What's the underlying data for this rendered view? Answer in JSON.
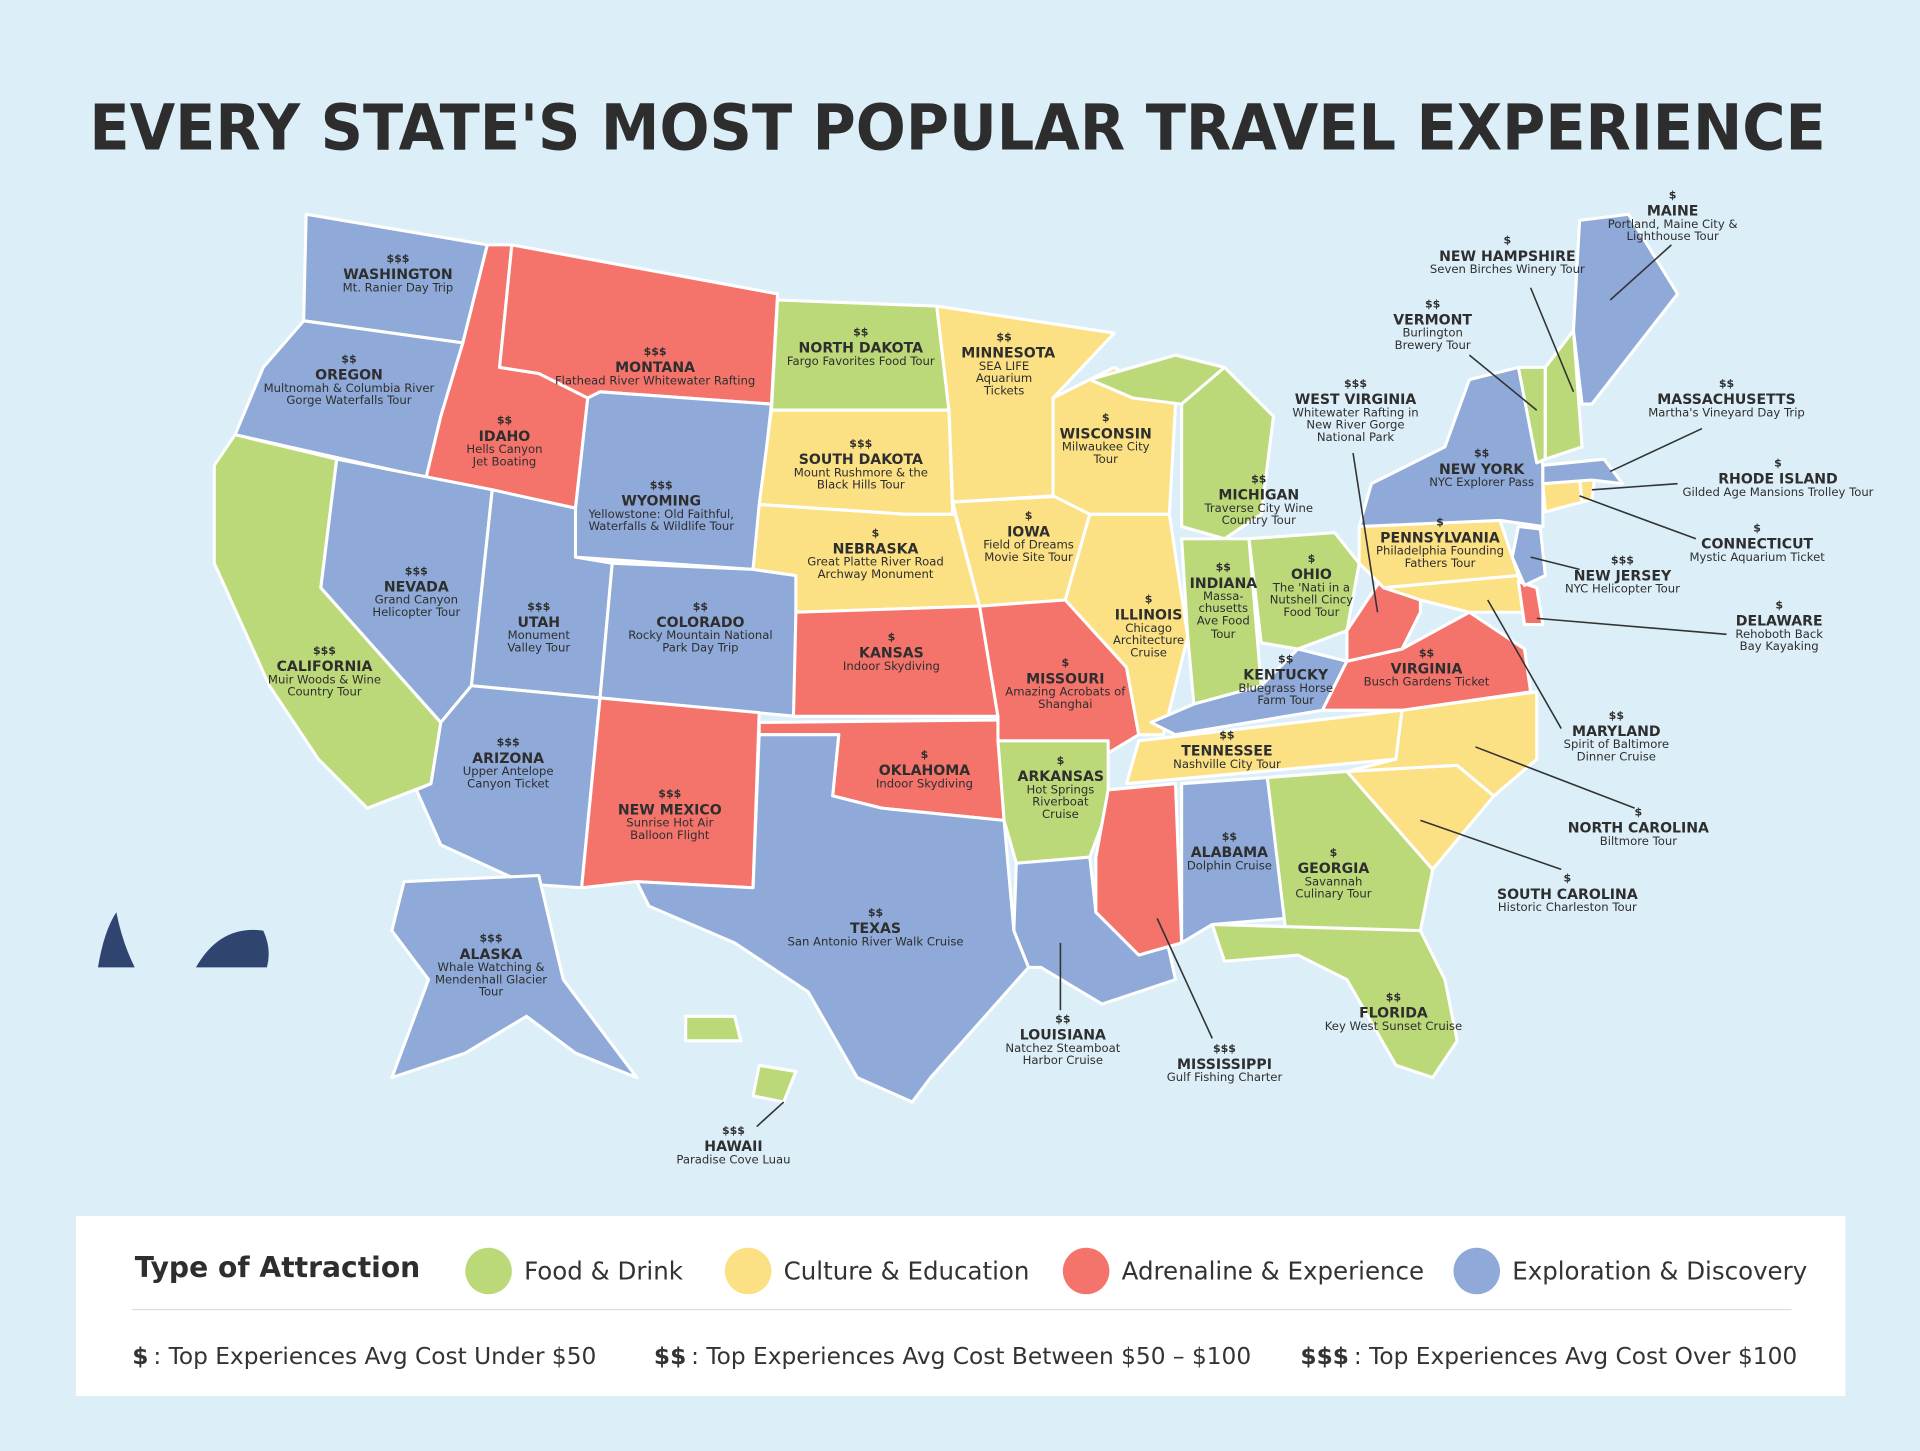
{
  "title": "EVERY STATE'S MOST POPULAR TRAVEL EXPERIENCE",
  "states": [
    {
      "name": "WASHINGTON",
      "cost": "$$$",
      "tour": "Mt. Ranier Day Trip",
      "color": "#8faad8"
    },
    {
      "name": "OREGON",
      "cost": "$$",
      "tour": "Multnomah & Columbia River Gorge Waterfalls Tour",
      "color": "#8faad8"
    },
    {
      "name": "CALIFORNIA",
      "cost": "$$$",
      "tour": "Muir Woods & Wine Country Tour",
      "color": "#bcd97a"
    },
    {
      "name": "IDAHO",
      "cost": "$$",
      "tour": "Hells Canyon Jet Boating",
      "color": "#f4746c"
    },
    {
      "name": "NEVADA",
      "cost": "$$$",
      "tour": "Grand Canyon Helicopter Tour",
      "color": "#8faad8"
    },
    {
      "name": "UTAH",
      "cost": "$$$",
      "tour": "Monument Valley Tour",
      "color": "#8faad8"
    },
    {
      "name": "ARIZONA",
      "cost": "$$$",
      "tour": "Upper Antelope Canyon Ticket",
      "color": "#8faad8"
    },
    {
      "name": "MONTANA",
      "cost": "$$$",
      "tour": "Flathead River Whitewater Rafting",
      "color": "#f4746c"
    },
    {
      "name": "WYOMING",
      "cost": "$$$",
      "tour": "Yellowstone: Old Faithful, Waterfalls & Wildlife Tour",
      "color": "#8faad8"
    },
    {
      "name": "COLORADO",
      "cost": "$$",
      "tour": "Rocky Mountain National Park Day Trip",
      "color": "#8faad8"
    },
    {
      "name": "NEW MEXICO",
      "cost": "$$$",
      "tour": "Sunrise Hot Air Balloon Flight",
      "color": "#f4746c"
    },
    {
      "name": "NORTH DAKOTA",
      "cost": "$$",
      "tour": "Fargo Favorites Food Tour",
      "color": "#bcd97a"
    },
    {
      "name": "SOUTH DAKOTA",
      "cost": "$$$",
      "tour": "Mount Rushmore & the Black Hills Tour",
      "color": "#fbe084"
    },
    {
      "name": "NEBRASKA",
      "cost": "$",
      "tour": "Great Platte River Road Archway Monument",
      "color": "#fbe084"
    },
    {
      "name": "KANSAS",
      "cost": "$",
      "tour": "Indoor Skydiving",
      "color": "#f4746c"
    },
    {
      "name": "OKLAHOMA",
      "cost": "$",
      "tour": "Indoor Skydiving",
      "color": "#f4746c"
    },
    {
      "name": "TEXAS",
      "cost": "$$",
      "tour": "San Antonio River Walk Cruise",
      "color": "#8faad8"
    },
    {
      "name": "MINNESOTA",
      "cost": "$$",
      "tour": "SEA LIFE Aquarium Tickets",
      "color": "#fbe084"
    },
    {
      "name": "IOWA",
      "cost": "$",
      "tour": "Field of Dreams Movie Site Tour",
      "color": "#fbe084"
    },
    {
      "name": "MISSOURI",
      "cost": "$",
      "tour": "Amazing Acrobats of Shanghai",
      "color": "#f4746c"
    },
    {
      "name": "ARKANSAS",
      "cost": "$",
      "tour": "Hot Springs Riverboat Cruise",
      "color": "#bcd97a"
    },
    {
      "name": "LOUISIANA",
      "cost": "$$",
      "tour": "Natchez Steamboat Harbor Cruise",
      "color": "#8faad8"
    },
    {
      "name": "WISCONSIN",
      "cost": "$",
      "tour": "Milwaukee City Tour",
      "color": "#fbe084"
    },
    {
      "name": "ILLINOIS",
      "cost": "$",
      "tour": "Chicago Architecture Cruise",
      "color": "#fbe084"
    },
    {
      "name": "MISSISSIPPI",
      "cost": "$$$",
      "tour": "Gulf Fishing Charter",
      "color": "#f4746c"
    },
    {
      "name": "MICHIGAN",
      "cost": "$$",
      "tour": "Traverse City Wine Country Tour",
      "color": "#bcd97a"
    },
    {
      "name": "INDIANA",
      "cost": "$$",
      "tour": "Massa-chusetts Ave Food Tour",
      "color": "#bcd97a"
    },
    {
      "name": "OHIO",
      "cost": "$",
      "tour": "The 'Nati in a Nutshell Cincy Food Tour",
      "color": "#bcd97a"
    },
    {
      "name": "KENTUCKY",
      "cost": "$$",
      "tour": "Bluegrass Horse Farm Tour",
      "color": "#8faad8"
    },
    {
      "name": "TENNESSEE",
      "cost": "$$",
      "tour": "Nashville City Tour",
      "color": "#fbe084"
    },
    {
      "name": "ALABAMA",
      "cost": "$$",
      "tour": "Dolphin Cruise",
      "color": "#8faad8"
    },
    {
      "name": "GEORGIA",
      "cost": "$",
      "tour": "Savannah Culinary Tour",
      "color": "#bcd97a"
    },
    {
      "name": "FLORIDA",
      "cost": "$$",
      "tour": "Key West Sunset Cruise",
      "color": "#bcd97a"
    },
    {
      "name": "SOUTH CAROLINA",
      "cost": "$",
      "tour": "Historic Charleston Tour",
      "color": "#fbe084"
    },
    {
      "name": "NORTH CAROLINA",
      "cost": "$",
      "tour": "Biltmore Tour",
      "color": "#fbe084"
    },
    {
      "name": "VIRGINIA",
      "cost": "$$",
      "tour": "Busch Gardens Ticket",
      "color": "#f4746c"
    },
    {
      "name": "WEST VIRGINIA",
      "cost": "$$$",
      "tour": "Whitewater Rafting in New River Gorge National Park",
      "color": "#f4746c"
    },
    {
      "name": "PENNSYLVANIA",
      "cost": "$",
      "tour": "Philadelphia Founding Fathers Tour",
      "color": "#fbe084"
    },
    {
      "name": "NEW YORK",
      "cost": "$$",
      "tour": "NYC Explorer Pass",
      "color": "#8faad8"
    },
    {
      "name": "MARYLAND",
      "cost": "$$",
      "tour": "Spirit of Baltimore Dinner Cruise",
      "color": "#fbe084"
    },
    {
      "name": "DELAWARE",
      "cost": "$",
      "tour": "Rehoboth Back Bay Kayaking",
      "color": "#f4746c"
    },
    {
      "name": "NEW JERSEY",
      "cost": "$$$",
      "tour": "NYC Helicopter Tour",
      "color": "#8faad8"
    },
    {
      "name": "CONNECTICUT",
      "cost": "$",
      "tour": "Mystic Aquarium Ticket",
      "color": "#fbe084"
    },
    {
      "name": "RHODE ISLAND",
      "cost": "$",
      "tour": "Gilded Age Mansions Trolley Tour",
      "color": "#fbe084"
    },
    {
      "name": "MASSACHUSETTS",
      "cost": "$$",
      "tour": "Martha's Vineyard Day Trip",
      "color": "#8faad8"
    },
    {
      "name": "VERMONT",
      "cost": "$$",
      "tour": "Burlington Brewery Tour",
      "color": "#bcd97a"
    },
    {
      "name": "NEW HAMPSHIRE",
      "cost": "$",
      "tour": "Seven Birches Winery Tour",
      "color": "#bcd97a"
    },
    {
      "name": "MAINE",
      "cost": "$",
      "tour": "Portland, Maine City & Lighthouse Tour",
      "color": "#8faad8"
    },
    {
      "name": "ALASKA",
      "cost": "$$$",
      "tour": "Whale Watching & Mendenhall Glacier Tour",
      "color": "#8faad8"
    },
    {
      "name": "HAWAII",
      "cost": "$$$",
      "tour": "Paradise Cove Luau",
      "color": "#bcd97a"
    }
  ],
  "legend": {
    "title": "Type of Attraction",
    "items": [
      {
        "label": "Food & Drink",
        "color": "#bcd97a"
      },
      {
        "label": "Culture & Education",
        "color": "#fbe084"
      },
      {
        "label": "Adrenaline & Experience",
        "color": "#f4746c"
      },
      {
        "label": "Exploration & Discovery",
        "color": "#8faad8"
      }
    ],
    "costs": [
      {
        "symbol": "$",
        "text": ": Top Experiences Avg Cost Under $50"
      },
      {
        "symbol": "$$",
        "text": ": Top Experiences Avg Cost Between $50 – $100"
      },
      {
        "symbol": "$$$",
        "text": ": Top Experiences Avg Cost Over $100"
      }
    ]
  }
}
